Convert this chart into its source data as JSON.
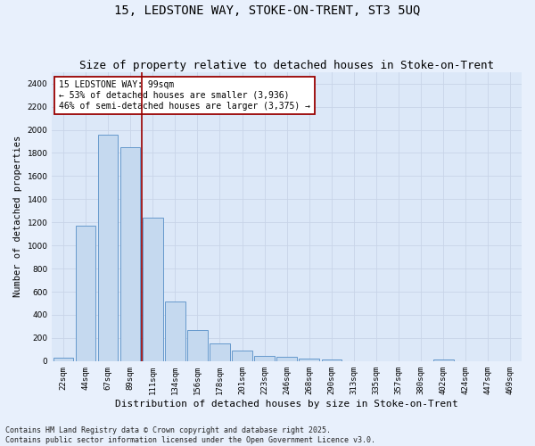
{
  "title1": "15, LEDSTONE WAY, STOKE-ON-TRENT, ST3 5UQ",
  "title2": "Size of property relative to detached houses in Stoke-on-Trent",
  "xlabel": "Distribution of detached houses by size in Stoke-on-Trent",
  "ylabel": "Number of detached properties",
  "categories": [
    "22sqm",
    "44sqm",
    "67sqm",
    "89sqm",
    "111sqm",
    "134sqm",
    "156sqm",
    "178sqm",
    "201sqm",
    "223sqm",
    "246sqm",
    "268sqm",
    "290sqm",
    "313sqm",
    "335sqm",
    "357sqm",
    "380sqm",
    "402sqm",
    "424sqm",
    "447sqm",
    "469sqm"
  ],
  "values": [
    30,
    1170,
    1960,
    1850,
    1240,
    515,
    270,
    155,
    90,
    48,
    40,
    25,
    15,
    0,
    0,
    0,
    0,
    12,
    0,
    0,
    0
  ],
  "bar_color": "#c5d9ef",
  "bar_edge_color": "#6699cc",
  "vline_color": "#990000",
  "annotation_text": "15 LEDSTONE WAY: 99sqm\n← 53% of detached houses are smaller (3,936)\n46% of semi-detached houses are larger (3,375) →",
  "annotation_box_color": "#ffffff",
  "annotation_box_edge_color": "#990000",
  "ylim": [
    0,
    2500
  ],
  "yticks": [
    0,
    200,
    400,
    600,
    800,
    1000,
    1200,
    1400,
    1600,
    1800,
    2000,
    2200,
    2400
  ],
  "grid_color": "#c8d4e8",
  "bg_color": "#dce8f8",
  "fig_bg_color": "#e8f0fc",
  "footnote1": "Contains HM Land Registry data © Crown copyright and database right 2025.",
  "footnote2": "Contains public sector information licensed under the Open Government Licence v3.0.",
  "title1_fontsize": 10,
  "title2_fontsize": 9,
  "annot_fontsize": 7,
  "tick_fontsize": 6.5,
  "ylabel_fontsize": 7.5,
  "xlabel_fontsize": 8,
  "footnote_fontsize": 6
}
